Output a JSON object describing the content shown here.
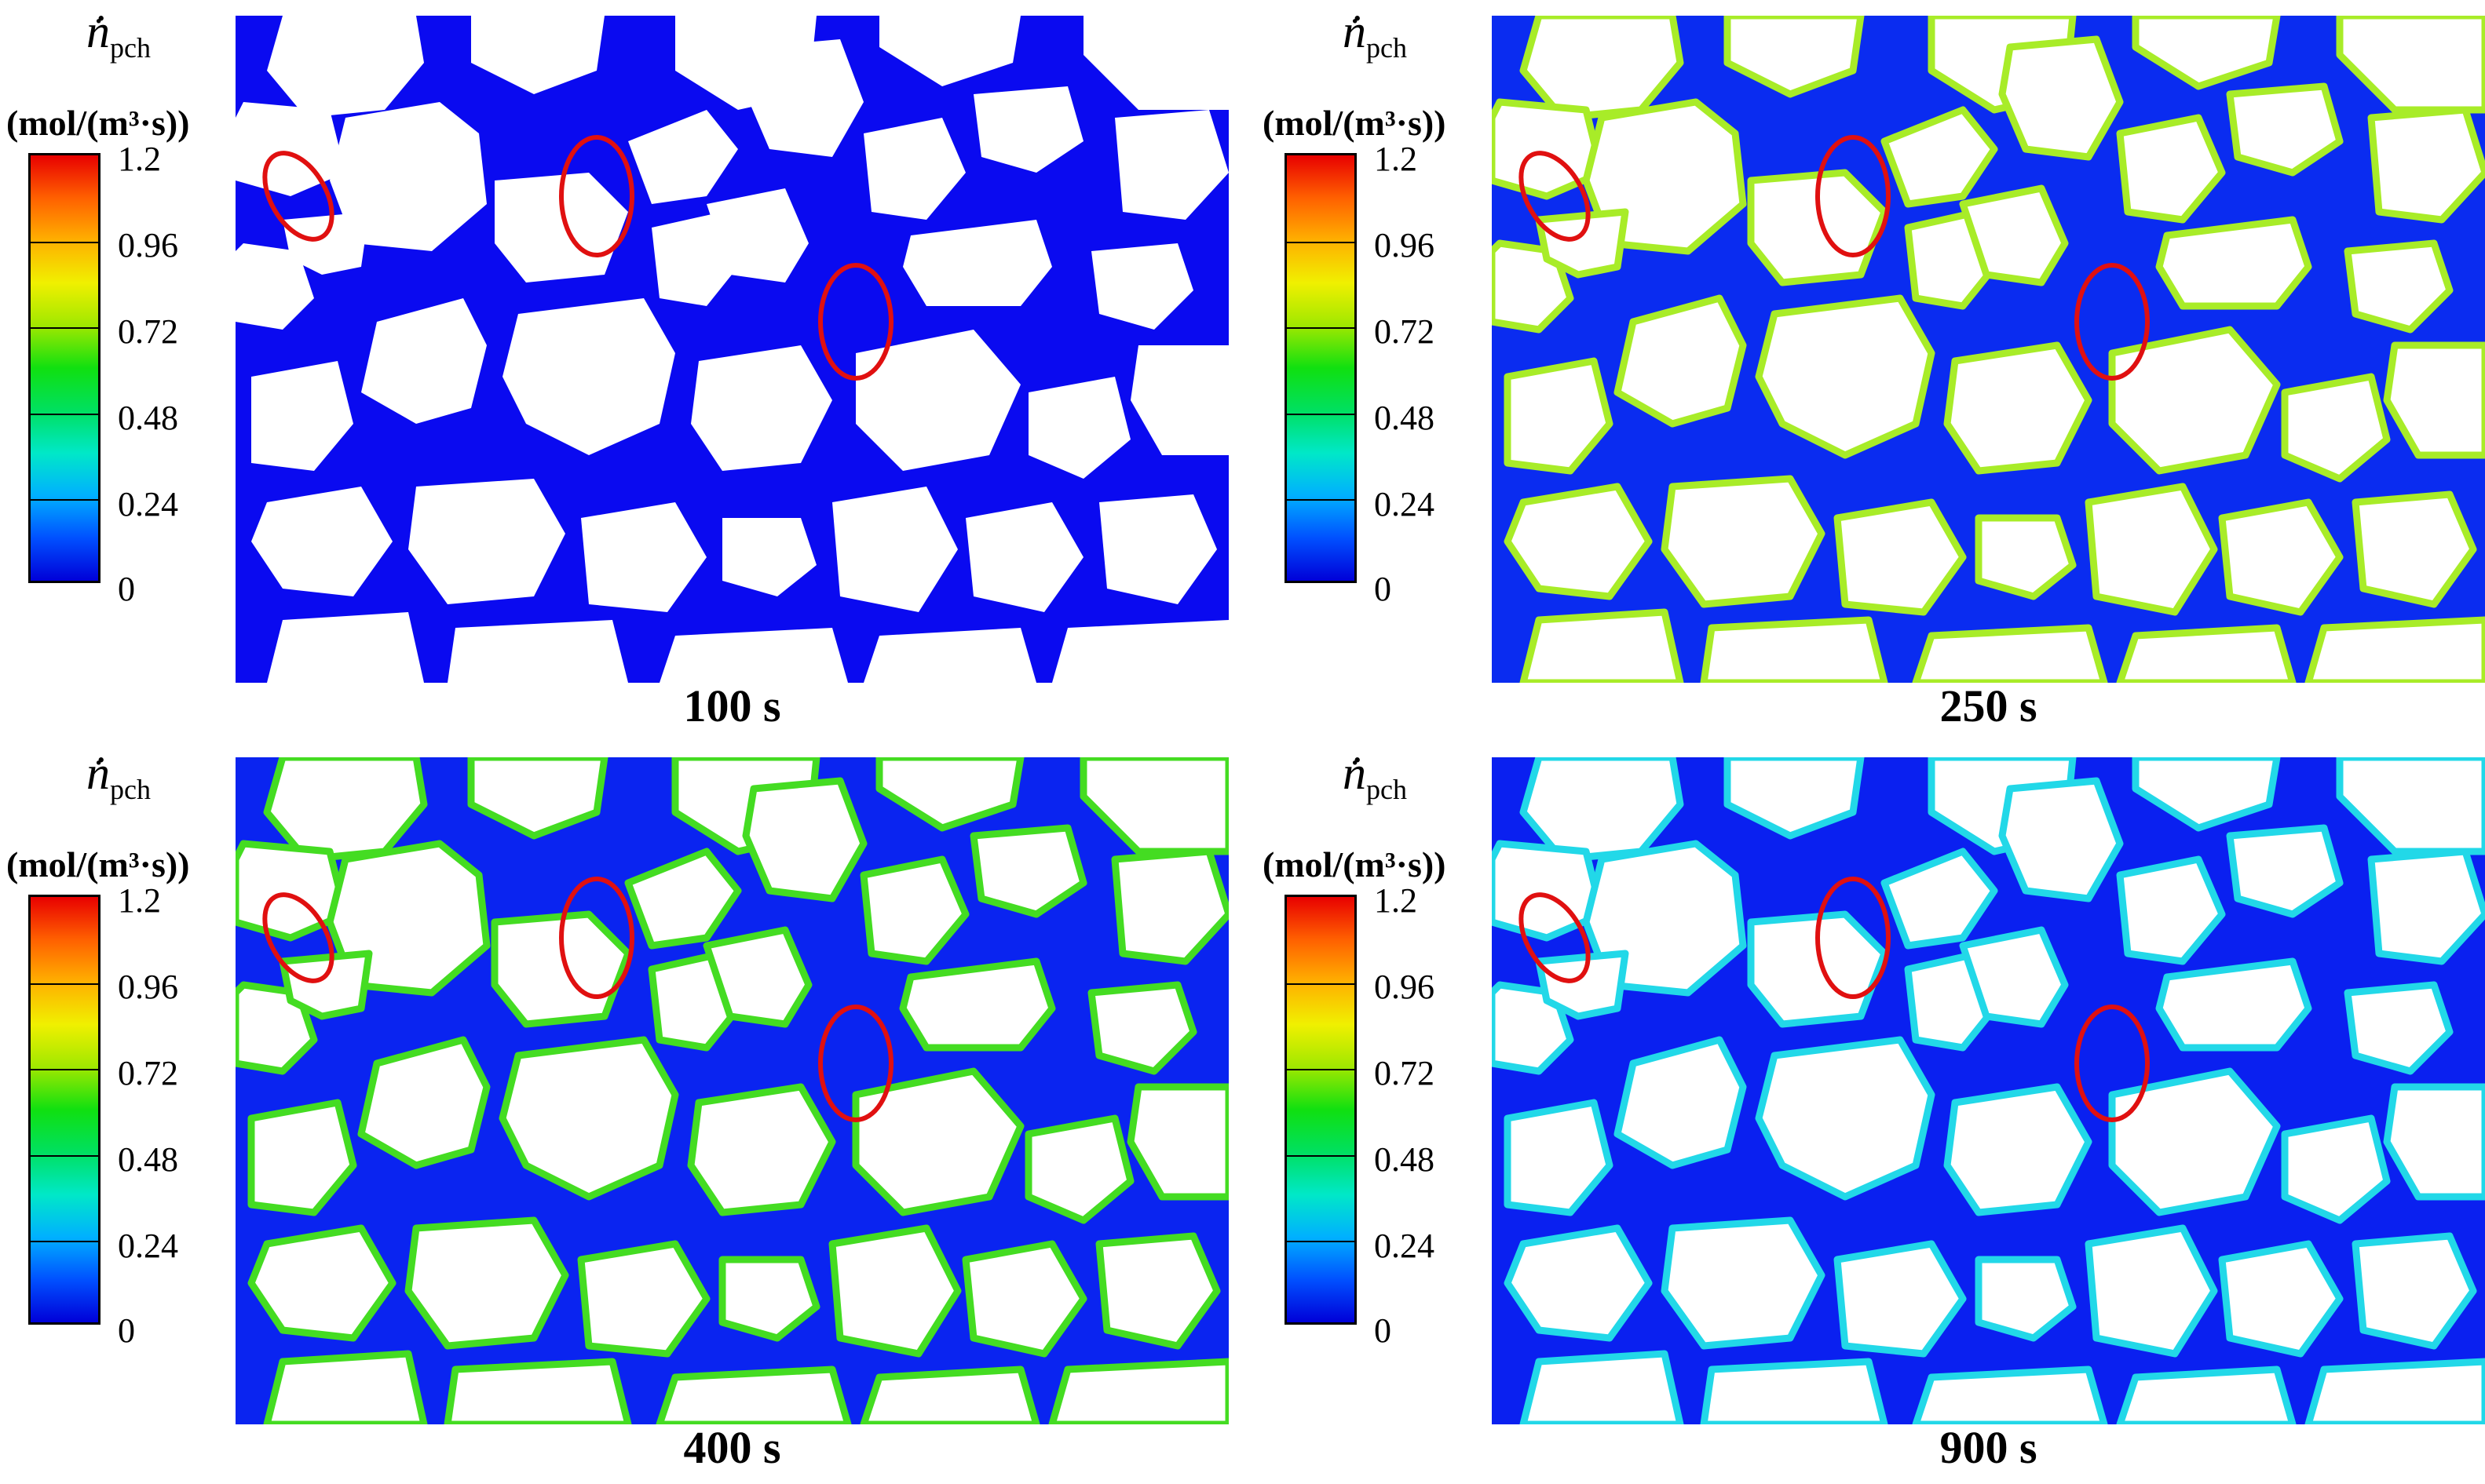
{
  "colorbar": {
    "symbol": "ṅ",
    "symbol_sub": "pch",
    "unit": "(mol/(m³·s))",
    "ticks": [
      "1.2",
      "0.96",
      "0.72",
      "0.48",
      "0.24",
      "0"
    ],
    "colors": [
      "#0000d8",
      "#00b0ff",
      "#10e010",
      "#f0f000",
      "#ff6000",
      "#e80000"
    ]
  },
  "panels": [
    {
      "time_label": "100 s",
      "fluid_color": "#0a0af0",
      "rim_color": "#0a0af0"
    },
    {
      "time_label": "250 s",
      "fluid_color": "#0a2cf0",
      "rim_color": "#a8ec28"
    },
    {
      "time_label": "400 s",
      "fluid_color": "#0a24f0",
      "rim_color": "#44dc22"
    },
    {
      "time_label": "900 s",
      "fluid_color": "#0a20f0",
      "rim_color": "#22d8e8"
    }
  ],
  "highlight_color": "#e01010"
}
